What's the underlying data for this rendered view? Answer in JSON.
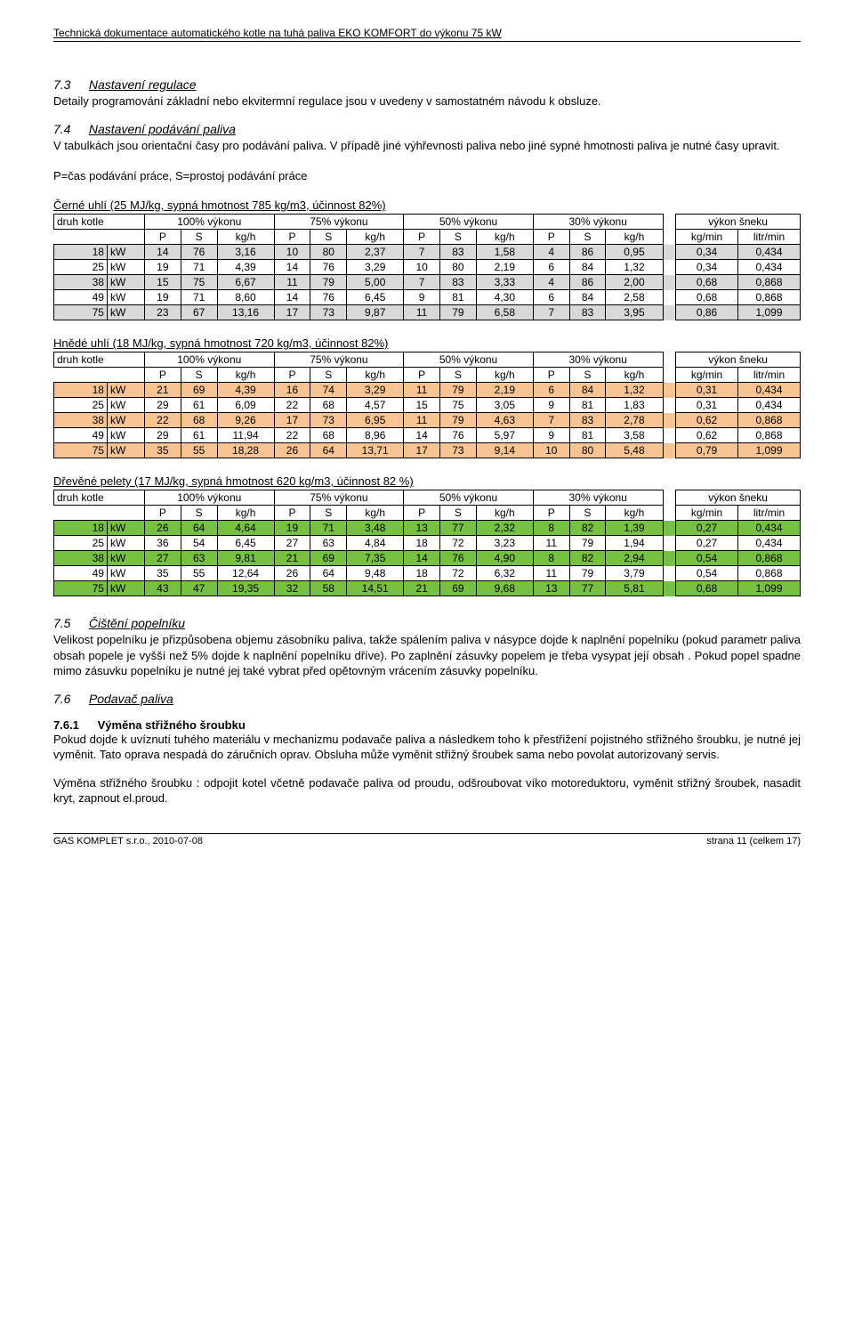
{
  "header": "Technická dokumentace automatického kotle na tuhá paliva EKO KOMFORT do výkonu 75 kW",
  "sections": {
    "s73": {
      "num": "7.3",
      "title": "Nastavení regulace",
      "body": "Detaily programování základní nebo ekvitermní regulace jsou v uvedeny v samostatném návodu k obsluze."
    },
    "s74": {
      "num": "7.4",
      "title": "Nastavení podávání paliva",
      "body": "V tabulkách jsou orientační časy pro podávání paliva. V případě jiné výhřevnosti paliva nebo jiné sypné hmotnosti paliva je nutné časy upravit."
    },
    "legend": "P=čas podávání práce, S=prostoj podávání práce",
    "s75": {
      "num": "7.5",
      "title": "Čištění popelníku",
      "body": "Velikost popelníku je přizpůsobena objemu zásobníku paliva, takže spálením paliva v násypce dojde k naplnění popelníku (pokud parametr paliva obsah popele je vyšší než 5% dojde k naplnění popelníku dříve). Po zaplnění zásuvky popelem je třeba vysypat její obsah . Pokud popel spadne mimo zásuvku popelníku je nutné jej také vybrat před opětovným vrácením zásuvky popelníku."
    },
    "s76": {
      "num": "7.6",
      "title": "Podavač paliva"
    },
    "s761": {
      "num": "7.6.1",
      "title": "Výměna střižného šroubku",
      "body1": "Pokud dojde k uvíznutí tuhého materiálu v mechanizmu podavače paliva a následkem toho k přestřižení pojistného střižného šroubku, je nutné jej vyměnit. Tato oprava nespadá do záručních oprav. Obsluha může vyměnit střižný šroubek sama nebo povolat autorizovaný servis.",
      "body2": "Výměna střižného šroubku : odpojit kotel včetně podavače paliva od proudu, odšroubovat víko motoreduktoru, vyměnit střižný šroubek, nasadit kryt, zapnout el.proud."
    }
  },
  "column_headers": {
    "druh": "druh kotle",
    "p100": "100% výkonu",
    "p75": "75% výkonu",
    "p50": "50% výkonu",
    "p30": "30% výkonu",
    "snek": "výkon šneku",
    "P": "P",
    "S": "S",
    "kgh": "kg/h",
    "kgmin": "kg/min",
    "lmin": "litr/min"
  },
  "tables": [
    {
      "title": "Černé uhlí (25 MJ/kg, sypná hmotnost 785 kg/m3, účinnost 82%)",
      "row_color_odd": "#d9d9d9",
      "row_color_even": "#ffffff",
      "rows": [
        {
          "kw": "18",
          "unit": "kW",
          "p100": [
            "14",
            "76",
            "3,16"
          ],
          "p75": [
            "10",
            "80",
            "2,37"
          ],
          "p50": [
            "7",
            "83",
            "1,58"
          ],
          "p30": [
            "4",
            "86",
            "0,95"
          ],
          "snek": [
            "0,34",
            "0,434"
          ]
        },
        {
          "kw": "25",
          "unit": "kW",
          "p100": [
            "19",
            "71",
            "4,39"
          ],
          "p75": [
            "14",
            "76",
            "3,29"
          ],
          "p50": [
            "10",
            "80",
            "2,19"
          ],
          "p30": [
            "6",
            "84",
            "1,32"
          ],
          "snek": [
            "0,34",
            "0,434"
          ]
        },
        {
          "kw": "38",
          "unit": "kW",
          "p100": [
            "15",
            "75",
            "6,67"
          ],
          "p75": [
            "11",
            "79",
            "5,00"
          ],
          "p50": [
            "7",
            "83",
            "3,33"
          ],
          "p30": [
            "4",
            "86",
            "2,00"
          ],
          "snek": [
            "0,68",
            "0,868"
          ]
        },
        {
          "kw": "49",
          "unit": "kW",
          "p100": [
            "19",
            "71",
            "8,60"
          ],
          "p75": [
            "14",
            "76",
            "6,45"
          ],
          "p50": [
            "9",
            "81",
            "4,30"
          ],
          "p30": [
            "6",
            "84",
            "2,58"
          ],
          "snek": [
            "0,68",
            "0,868"
          ]
        },
        {
          "kw": "75",
          "unit": "kW",
          "p100": [
            "23",
            "67",
            "13,16"
          ],
          "p75": [
            "17",
            "73",
            "9,87"
          ],
          "p50": [
            "11",
            "79",
            "6,58"
          ],
          "p30": [
            "7",
            "83",
            "3,95"
          ],
          "snek": [
            "0,86",
            "1,099"
          ]
        }
      ]
    },
    {
      "title": "Hnědé uhlí (18 MJ/kg, sypná hmotnost 720 kg/m3, účinnost 82%)",
      "row_color_odd": "#f8c494",
      "row_color_even": "#ffffff",
      "rows": [
        {
          "kw": "18",
          "unit": "kW",
          "p100": [
            "21",
            "69",
            "4,39"
          ],
          "p75": [
            "16",
            "74",
            "3,29"
          ],
          "p50": [
            "11",
            "79",
            "2,19"
          ],
          "p30": [
            "6",
            "84",
            "1,32"
          ],
          "snek": [
            "0,31",
            "0,434"
          ]
        },
        {
          "kw": "25",
          "unit": "kW",
          "p100": [
            "29",
            "61",
            "6,09"
          ],
          "p75": [
            "22",
            "68",
            "4,57"
          ],
          "p50": [
            "15",
            "75",
            "3,05"
          ],
          "p30": [
            "9",
            "81",
            "1,83"
          ],
          "snek": [
            "0,31",
            "0,434"
          ]
        },
        {
          "kw": "38",
          "unit": "kW",
          "p100": [
            "22",
            "68",
            "9,26"
          ],
          "p75": [
            "17",
            "73",
            "6,95"
          ],
          "p50": [
            "11",
            "79",
            "4,63"
          ],
          "p30": [
            "7",
            "83",
            "2,78"
          ],
          "snek": [
            "0,62",
            "0,868"
          ]
        },
        {
          "kw": "49",
          "unit": "kW",
          "p100": [
            "29",
            "61",
            "11,94"
          ],
          "p75": [
            "22",
            "68",
            "8,96"
          ],
          "p50": [
            "14",
            "76",
            "5,97"
          ],
          "p30": [
            "9",
            "81",
            "3,58"
          ],
          "snek": [
            "0,62",
            "0,868"
          ]
        },
        {
          "kw": "75",
          "unit": "kW",
          "p100": [
            "35",
            "55",
            "18,28"
          ],
          "p75": [
            "26",
            "64",
            "13,71"
          ],
          "p50": [
            "17",
            "73",
            "9,14"
          ],
          "p30": [
            "10",
            "80",
            "5,48"
          ],
          "snek": [
            "0,79",
            "1,099"
          ]
        }
      ]
    },
    {
      "title": "Dřevěné pelety (17 MJ/kg, sypná hmotnost 620 kg/m3, účinnost 82 %)",
      "row_color_odd": "#76c043",
      "row_color_even": "#ffffff",
      "rows": [
        {
          "kw": "18",
          "unit": "kW",
          "p100": [
            "26",
            "64",
            "4,64"
          ],
          "p75": [
            "19",
            "71",
            "3,48"
          ],
          "p50": [
            "13",
            "77",
            "2,32"
          ],
          "p30": [
            "8",
            "82",
            "1,39"
          ],
          "snek": [
            "0,27",
            "0,434"
          ]
        },
        {
          "kw": "25",
          "unit": "kW",
          "p100": [
            "36",
            "54",
            "6,45"
          ],
          "p75": [
            "27",
            "63",
            "4,84"
          ],
          "p50": [
            "18",
            "72",
            "3,23"
          ],
          "p30": [
            "11",
            "79",
            "1,94"
          ],
          "snek": [
            "0,27",
            "0,434"
          ]
        },
        {
          "kw": "38",
          "unit": "kW",
          "p100": [
            "27",
            "63",
            "9,81"
          ],
          "p75": [
            "21",
            "69",
            "7,35"
          ],
          "p50": [
            "14",
            "76",
            "4,90"
          ],
          "p30": [
            "8",
            "82",
            "2,94"
          ],
          "snek": [
            "0,54",
            "0,868"
          ]
        },
        {
          "kw": "49",
          "unit": "kW",
          "p100": [
            "35",
            "55",
            "12,64"
          ],
          "p75": [
            "26",
            "64",
            "9,48"
          ],
          "p50": [
            "18",
            "72",
            "6,32"
          ],
          "p30": [
            "11",
            "79",
            "3,79"
          ],
          "snek": [
            "0,54",
            "0,868"
          ]
        },
        {
          "kw": "75",
          "unit": "kW",
          "p100": [
            "43",
            "47",
            "19,35"
          ],
          "p75": [
            "32",
            "58",
            "14,51"
          ],
          "p50": [
            "21",
            "69",
            "9,68"
          ],
          "p30": [
            "13",
            "77",
            "5,81"
          ],
          "snek": [
            "0,68",
            "1,099"
          ]
        }
      ]
    }
  ],
  "footer": {
    "left": "GAS KOMPLET s.r.o.,   2010-07-08",
    "right": "strana 11 (celkem 17)"
  }
}
